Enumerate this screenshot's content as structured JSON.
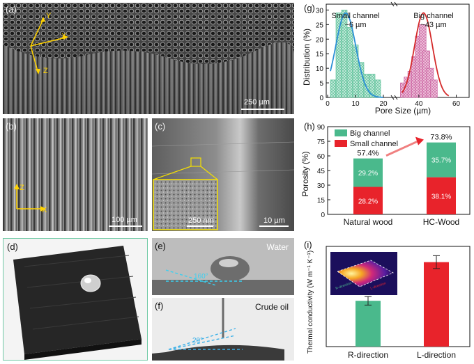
{
  "panels": {
    "a": {
      "label": "(a)",
      "scale": "250 µm",
      "axes": {
        "y": "Y",
        "x": "X",
        "z": "Z"
      }
    },
    "b": {
      "label": "(b)",
      "scale": "100 µm",
      "axes": {
        "z": "Z",
        "x": "X"
      }
    },
    "c": {
      "label": "(c)",
      "scale": "10 µm",
      "inset_scale": "250 nm"
    },
    "d": {
      "label": "(d)"
    },
    "e": {
      "label": "(e)",
      "liquid": "Water",
      "angle": "160°"
    },
    "f": {
      "label": "(f)",
      "liquid": "Crude oil",
      "angle": "20°"
    }
  },
  "colors": {
    "small": "#4ab98c",
    "big": "#c7579a",
    "red": "#e8232b",
    "fit_blue": "#2b8fd6",
    "fit_red": "#d42a2a",
    "panel_border": "#6fc9a5"
  },
  "chart_g": {
    "label": "(g)",
    "annot_small_1": "Small channel",
    "annot_small_2": "~6 µm",
    "annot_big_1": "Big channel",
    "annot_big_2": "~43 µm",
    "xlabel": "Pore Size (µm)",
    "ylabel": "Distribution (%)",
    "yticks": [
      "0",
      "5",
      "10",
      "15",
      "20",
      "25",
      "30"
    ],
    "xticks_left": [
      "0",
      "10",
      "20"
    ],
    "xticks_right": [
      "40",
      "60"
    ]
  },
  "chart_h": {
    "label": "(h)",
    "ylabel": "Porosity (%)",
    "yticks": [
      "0",
      "15",
      "30",
      "45",
      "60",
      "75",
      "90"
    ],
    "legend": [
      "Big channel",
      "Small channel"
    ],
    "categories": [
      "Natural wood",
      "HC-Wood"
    ],
    "small_labels": [
      "28.2%",
      "38.1%"
    ],
    "big_labels": [
      "29.2%",
      "35.7%"
    ],
    "totals": [
      "57.4%",
      "73.8%"
    ]
  },
  "chart_i": {
    "label": "(i)",
    "ylabel": "Thermal conductivity (W m⁻¹ K⁻¹)",
    "categories": [
      "R-direction",
      "L-direction"
    ],
    "inset_left": "R-direction",
    "inset_right": "L-direction"
  },
  "chart_data": [
    {
      "type": "bar",
      "title": "",
      "xlabel": "Pore Size (µm)",
      "ylabel": "Distribution (%)",
      "ylim": [
        0,
        32
      ],
      "series": [
        {
          "name": "Small channel",
          "x": [
            2,
            4,
            6,
            8,
            10,
            12,
            14,
            16,
            18
          ],
          "values": [
            6,
            29,
            30,
            24,
            18,
            12,
            8,
            8,
            6
          ]
        },
        {
          "name": "Big channel",
          "x": [
            32,
            34,
            36,
            38,
            40,
            42,
            44,
            46,
            48
          ],
          "values": [
            5,
            7,
            9,
            14,
            21,
            25,
            16,
            10,
            6
          ]
        }
      ],
      "fits": [
        {
          "name": "Small channel",
          "peak": 6
        },
        {
          "name": "Big channel",
          "peak": 43
        }
      ]
    },
    {
      "type": "bar",
      "title": "",
      "ylabel": "Porosity (%)",
      "ylim": [
        0,
        90
      ],
      "categories": [
        "Natural wood",
        "HC-Wood"
      ],
      "series": [
        {
          "name": "Small channel",
          "values": [
            28.2,
            38.1
          ]
        },
        {
          "name": "Big channel",
          "values": [
            29.2,
            35.7
          ]
        }
      ],
      "totals": [
        57.4,
        73.8
      ]
    },
    {
      "type": "bar",
      "title": "",
      "ylabel": "Thermal conductivity (W m⁻¹ K⁻¹)",
      "categories": [
        "R-direction",
        "L-direction"
      ],
      "values": [
        0.32,
        0.59
      ],
      "errors": [
        0.03,
        0.045
      ],
      "ylim": [
        0,
        0.7
      ]
    }
  ]
}
